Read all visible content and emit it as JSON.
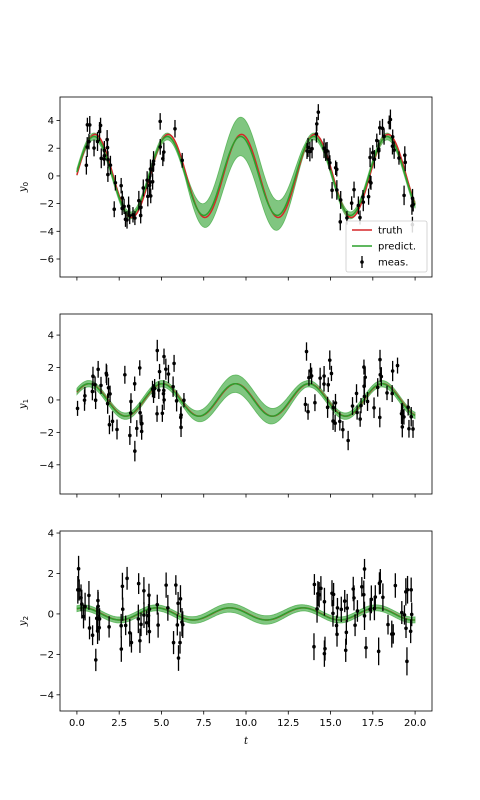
{
  "chart_data": [
    {
      "type": "line",
      "ylabel": "y",
      "ylabel_sub": "0",
      "xlabel": "",
      "xlim": [
        -1,
        21
      ],
      "ylim": [
        -7.3,
        5.7
      ],
      "yticks": [
        4,
        2,
        0,
        -2,
        -4,
        -6
      ],
      "show_xtick_labels": false,
      "band_width_gap": 0.25,
      "band_width_mid": 1.4,
      "truth_params": {
        "amp": 3.0,
        "omega": 1.45,
        "phase": 0.02
      },
      "predict_params": {
        "amp": 2.85,
        "omega": 1.45,
        "phase": 0.1
      },
      "meas_params": {
        "noise": 0.9,
        "yerr": 0.6
      },
      "legend": {
        "location": "lower right",
        "entries": [
          {
            "label": "truth",
            "color": "#d62728",
            "kind": "line"
          },
          {
            "label": "predict.",
            "color": "#2ca02c",
            "kind": "line"
          },
          {
            "label": "meas.",
            "color": "#000000",
            "kind": "errorbar"
          }
        ]
      }
    },
    {
      "type": "line",
      "ylabel": "y",
      "ylabel_sub": "1",
      "xlabel": "",
      "xlim": [
        -1,
        21
      ],
      "ylim": [
        -5.8,
        5.3
      ],
      "yticks": [
        4,
        2,
        0,
        -2,
        -4
      ],
      "show_xtick_labels": false,
      "band_width_gap": 0.2,
      "band_width_mid": 0.55,
      "truth_params": {
        "amp": 1.0,
        "omega": 1.45,
        "phase": 0.5
      },
      "predict_params": {
        "amp": 1.0,
        "omega": 1.45,
        "phase": 0.55
      },
      "meas_params": {
        "noise": 1.0,
        "yerr": 0.55
      }
    },
    {
      "type": "line",
      "ylabel": "y",
      "ylabel_sub": "2",
      "xlabel": "t",
      "xlim": [
        -1,
        21
      ],
      "ylim": [
        -4.8,
        4.1
      ],
      "yticks": [
        4,
        2,
        0,
        -2,
        -4
      ],
      "xticks": [
        "0.0",
        "2.5",
        "5.0",
        "7.5",
        "10.0",
        "12.5",
        "15.0",
        "17.5",
        "20.0"
      ],
      "show_xtick_labels": true,
      "band_width_gap": 0.15,
      "band_width_mid": 0.22,
      "truth_params": {
        "amp": 0.3,
        "omega": 1.45,
        "phase": 1.0
      },
      "predict_params": {
        "amp": 0.3,
        "omega": 1.45,
        "phase": 1.05
      },
      "meas_params": {
        "noise": 1.0,
        "yerr": 0.6
      }
    }
  ],
  "series_colors": {
    "truth": "#d62728",
    "predict": "#2ca02c",
    "band": "#2ca02c",
    "meas": "#000000"
  }
}
